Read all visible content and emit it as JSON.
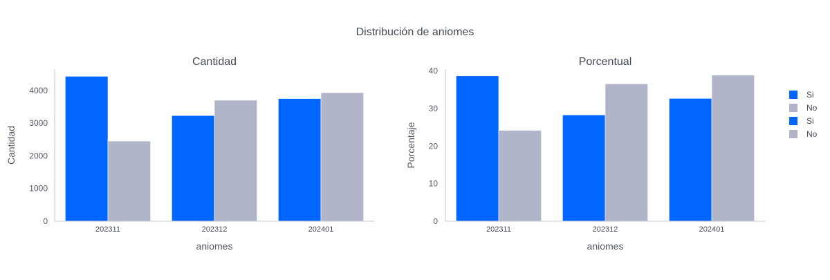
{
  "title": "Distribución de aniomes",
  "colors": {
    "si": "#0066ff",
    "no": "#b0b5c9"
  },
  "chart_data": [
    {
      "type": "bar",
      "title": "Cantidad",
      "xlabel": "aniomes",
      "ylabel": "Cantidad",
      "categories": [
        "202311",
        "202312",
        "202401"
      ],
      "ylim": [
        0,
        4650
      ],
      "yticks": [
        0,
        1000,
        2000,
        3000,
        4000
      ],
      "series": [
        {
          "name": "Si",
          "color": "#0066ff",
          "values": [
            4430,
            3230,
            3750
          ]
        },
        {
          "name": "No",
          "color": "#b0b5c9",
          "values": [
            2450,
            3700,
            3930
          ]
        }
      ]
    },
    {
      "type": "bar",
      "title": "Porcentual",
      "xlabel": "aniomes",
      "ylabel": "Porcentaje",
      "categories": [
        "202311",
        "202312",
        "202401"
      ],
      "ylim": [
        0,
        40.5
      ],
      "yticks": [
        0,
        10,
        20,
        30,
        40
      ],
      "series": [
        {
          "name": "Si",
          "color": "#0066ff",
          "values": [
            38.7,
            28.3,
            32.7
          ]
        },
        {
          "name": "No",
          "color": "#b0b5c9",
          "values": [
            24.2,
            36.6,
            38.9
          ]
        }
      ]
    }
  ],
  "legend": [
    {
      "label": "Si",
      "color": "#0066ff"
    },
    {
      "label": "No",
      "color": "#b0b5c9"
    },
    {
      "label": "Si",
      "color": "#0066ff"
    },
    {
      "label": "No",
      "color": "#b0b5c9"
    }
  ]
}
